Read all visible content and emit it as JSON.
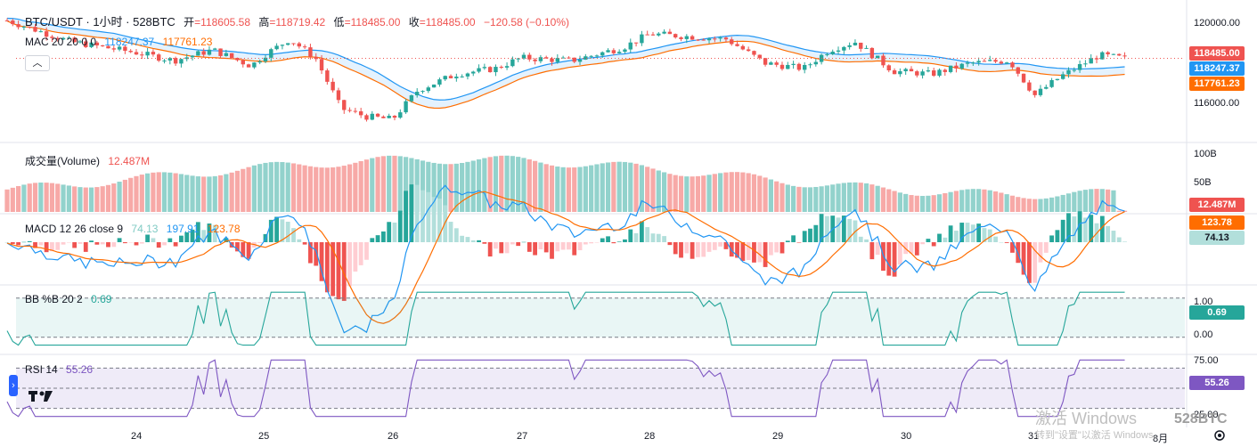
{
  "header": {
    "symbol": "BTC/USDT · 1小时 · 528BTC",
    "open_label": "开",
    "open": "=118605.58",
    "high_label": "高",
    "high": "=118719.42",
    "low_label": "低",
    "low": "=118485.00",
    "close_label": "收",
    "close": "=118485.00",
    "change": "−120.58 (−0.10%)"
  },
  "legends": {
    "mac": {
      "name": "MAC 20 20 0 0",
      "upper": "118247.37",
      "lower": "117761.23"
    },
    "volume": {
      "name": "成交量(Volume)",
      "value": "12.487M"
    },
    "macd": {
      "name": "MACD 12 26 close 9",
      "hist": "74.13",
      "macd": "197.91",
      "signal": "123.78"
    },
    "bb": {
      "name": "BB %B 20 2",
      "value": "0.69"
    },
    "rsi": {
      "name": "RSI 14",
      "value": "55.26"
    }
  },
  "price_axis": [
    "120000.00",
    "116000.00"
  ],
  "volume_axis": [
    "100B",
    "50B"
  ],
  "bb_axis": [
    "1.00",
    "0.00"
  ],
  "rsi_axis": [
    "75.00",
    "25.00"
  ],
  "tags": {
    "last": "118485.00",
    "mac_upper": "118247.37",
    "mac_lower": "117761.23",
    "volume": "12.487M",
    "macd_signal": "123.78",
    "macd_hist": "74.13",
    "bb": "0.69",
    "rsi": "55.26"
  },
  "dates": [
    "24",
    "25",
    "26",
    "27",
    "28",
    "29",
    "30",
    "31",
    "8月"
  ],
  "watermark": {
    "line1": "激活 Windows",
    "line2": "转到\"设置\"以激活 Windows。"
  },
  "logo": "528BTC",
  "colors": {
    "up": "#26a69a",
    "down": "#ef5350",
    "mac_upper": "#2196f3",
    "mac_lower": "#ff6d00",
    "bb": "#26a69a",
    "rsi": "#7e57c2"
  },
  "chart_data": {
    "type": "candlestick",
    "x_labels": [
      "24",
      "25",
      "26",
      "27",
      "28",
      "29",
      "30",
      "31",
      "8月"
    ],
    "price_range": [
      115400,
      120400
    ],
    "price_anchors": [
      {
        "day": 23.0,
        "price": 119900
      },
      {
        "day": 23.5,
        "price": 119100
      },
      {
        "day": 24.0,
        "price": 118700
      },
      {
        "day": 24.3,
        "price": 118400
      },
      {
        "day": 24.6,
        "price": 118800
      },
      {
        "day": 24.9,
        "price": 118200
      },
      {
        "day": 25.0,
        "price": 118600
      },
      {
        "day": 25.2,
        "price": 119200
      },
      {
        "day": 25.4,
        "price": 118500
      },
      {
        "day": 25.6,
        "price": 116600
      },
      {
        "day": 25.8,
        "price": 116300
      },
      {
        "day": 26.0,
        "price": 116200
      },
      {
        "day": 26.2,
        "price": 117300
      },
      {
        "day": 26.5,
        "price": 117900
      },
      {
        "day": 26.8,
        "price": 118100
      },
      {
        "day": 27.0,
        "price": 118500
      },
      {
        "day": 27.4,
        "price": 118400
      },
      {
        "day": 27.8,
        "price": 118900
      },
      {
        "day": 28.0,
        "price": 119400
      },
      {
        "day": 28.3,
        "price": 119300
      },
      {
        "day": 28.6,
        "price": 119200
      },
      {
        "day": 28.9,
        "price": 118300
      },
      {
        "day": 29.2,
        "price": 118100
      },
      {
        "day": 29.4,
        "price": 118800
      },
      {
        "day": 29.6,
        "price": 119100
      },
      {
        "day": 29.9,
        "price": 118000
      },
      {
        "day": 30.2,
        "price": 117900
      },
      {
        "day": 30.5,
        "price": 118300
      },
      {
        "day": 30.8,
        "price": 118400
      },
      {
        "day": 31.0,
        "price": 117100
      },
      {
        "day": 31.2,
        "price": 117800
      },
      {
        "day": 31.5,
        "price": 118600
      },
      {
        "day": 31.7,
        "price": 118485
      }
    ],
    "volume_range": [
      0,
      110
    ],
    "volume_unit": "B",
    "macd_last": {
      "hist": 74.13,
      "macd": 197.91,
      "signal": 123.78
    },
    "bb_percent_range": [
      -0.3,
      1.2
    ],
    "bb_last": 0.69,
    "rsi_range": [
      20,
      80
    ],
    "rsi_last": 55.26
  }
}
